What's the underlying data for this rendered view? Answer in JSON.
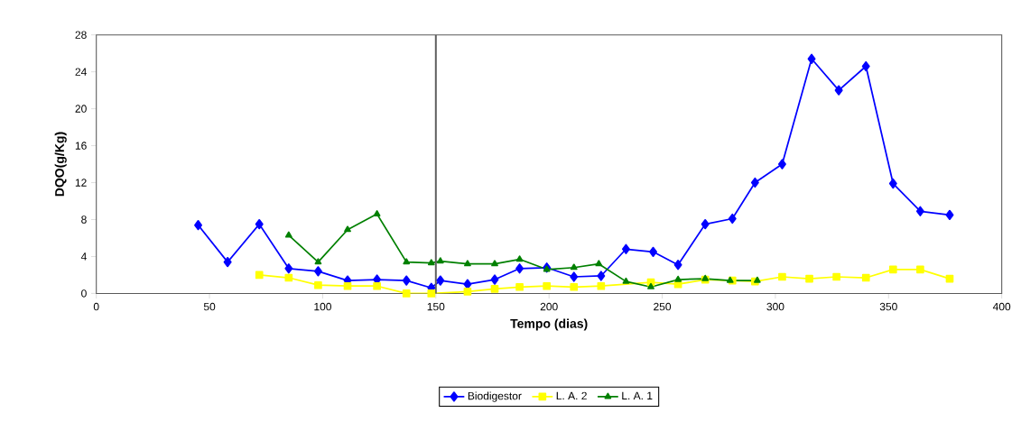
{
  "chart_data": {
    "type": "line",
    "xlabel": "Tempo (dias)",
    "ylabel": "DQO(g/Kg)",
    "xlim": [
      0,
      400
    ],
    "ylim": [
      0,
      28
    ],
    "xticks": [
      0,
      50,
      100,
      150,
      200,
      250,
      300,
      350,
      400
    ],
    "yticks": [
      0,
      4,
      8,
      12,
      16,
      20,
      24,
      28
    ],
    "grid": false,
    "legend": "bottom",
    "line_style": "solid",
    "ref_lines": [
      {
        "axis": "x",
        "value": 150,
        "color": "#606060"
      }
    ],
    "series": [
      {
        "name": "Biodigestor",
        "color": "#0000ff",
        "marker": "diamond",
        "x": [
          45,
          58,
          72,
          85,
          98,
          111,
          124,
          137,
          148,
          152,
          164,
          176,
          187,
          199,
          211,
          223,
          234,
          246,
          257,
          269,
          281,
          291,
          303,
          316,
          328,
          340,
          352,
          364,
          377
        ],
        "values": [
          7.4,
          3.4,
          7.5,
          2.7,
          2.4,
          1.4,
          1.5,
          1.4,
          0.6,
          1.4,
          1.0,
          1.5,
          2.7,
          2.8,
          1.8,
          1.9,
          4.8,
          4.5,
          3.1,
          7.5,
          8.1,
          12.0,
          14.0,
          25.4,
          22.0,
          24.6,
          11.9,
          8.9,
          8.5
        ]
      },
      {
        "name": "L. A. 2",
        "color": "#ffff00",
        "marker": "square",
        "x": [
          72,
          85,
          98,
          111,
          124,
          137,
          148,
          164,
          176,
          187,
          199,
          211,
          223,
          245,
          257,
          269,
          281,
          291,
          303,
          315,
          327,
          340,
          352,
          364,
          377
        ],
        "values": [
          2.0,
          1.7,
          0.9,
          0.8,
          0.8,
          0.0,
          0.0,
          0.2,
          0.5,
          0.7,
          0.8,
          0.7,
          0.8,
          1.2,
          1.0,
          1.5,
          1.4,
          1.3,
          1.8,
          1.6,
          1.8,
          1.7,
          2.6,
          2.6,
          1.6
        ]
      },
      {
        "name": "L. A. 1",
        "color": "#008000",
        "marker": "triangle",
        "x": [
          85,
          98,
          111,
          124,
          137,
          148,
          152,
          164,
          176,
          187,
          199,
          211,
          222,
          234,
          245,
          257,
          269,
          280,
          292
        ],
        "values": [
          6.3,
          3.4,
          6.9,
          8.6,
          3.4,
          3.3,
          3.5,
          3.2,
          3.2,
          3.7,
          2.6,
          2.8,
          3.2,
          1.3,
          0.7,
          1.5,
          1.6,
          1.4,
          1.4
        ]
      }
    ]
  }
}
